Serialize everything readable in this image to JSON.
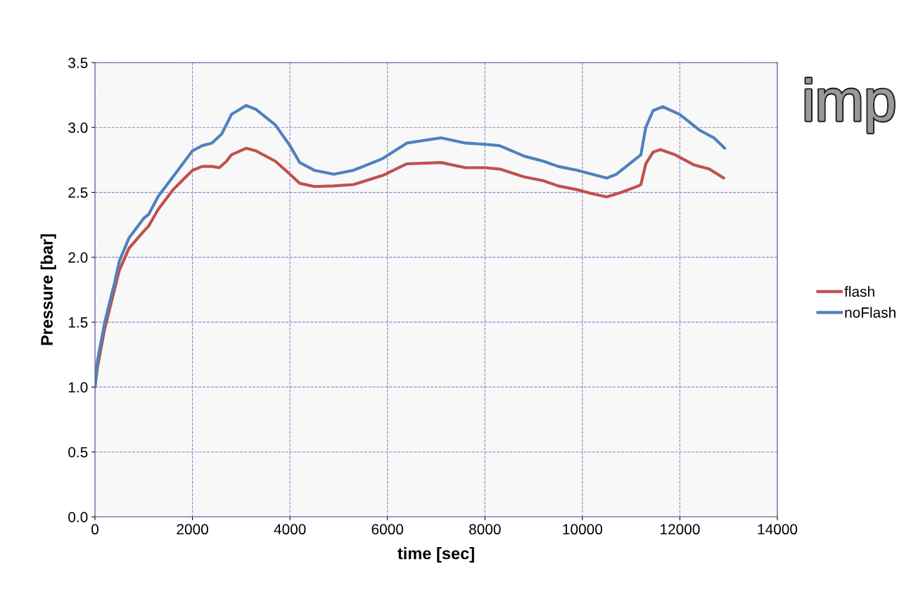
{
  "chart_data": {
    "type": "line",
    "xlabel": "time [sec]",
    "ylabel": "Pressure [bar]",
    "xlim": [
      0,
      14000
    ],
    "xticks": [
      0,
      2000,
      4000,
      6000,
      8000,
      10000,
      12000,
      14000
    ],
    "ylim": [
      0,
      3.5
    ],
    "yticks": [
      {
        "value": 0,
        "label": "0.0"
      },
      {
        "value": 0.5,
        "label": "0.5"
      },
      {
        "value": 1,
        "label": "1.0"
      },
      {
        "value": 1.5,
        "label": "1.5"
      },
      {
        "value": 2,
        "label": "2.0"
      },
      {
        "value": 2.5,
        "label": "2.5"
      },
      {
        "value": 3,
        "label": "3.0"
      },
      {
        "value": 3.5,
        "label": "3.5"
      }
    ],
    "grid": true,
    "legend": "right",
    "marker": "none",
    "line_style": "solid",
    "annotations": [
      "imp"
    ],
    "series": [
      {
        "name": "flash",
        "color": "#c0504d",
        "x": [
          0,
          50,
          200,
          400,
          500,
          700,
          1000,
          1100,
          1300,
          1600,
          2000,
          2200,
          2400,
          2550,
          2700,
          2800,
          3100,
          3300,
          3700,
          4000,
          4200,
          4500,
          4900,
          5300,
          5900,
          6400,
          7100,
          7600,
          8000,
          8300,
          8800,
          9200,
          9500,
          9900,
          10200,
          10500,
          10800,
          11150,
          11200,
          11300,
          11450,
          11600,
          11900,
          12300,
          12600,
          12900
        ],
        "values": [
          1.0,
          1.15,
          1.45,
          1.75,
          1.9,
          2.07,
          2.2,
          2.24,
          2.37,
          2.52,
          2.67,
          2.7,
          2.7,
          2.69,
          2.74,
          2.79,
          2.84,
          2.82,
          2.74,
          2.64,
          2.57,
          2.545,
          2.55,
          2.56,
          2.63,
          2.72,
          2.73,
          2.69,
          2.69,
          2.68,
          2.62,
          2.59,
          2.55,
          2.52,
          2.49,
          2.465,
          2.5,
          2.55,
          2.56,
          2.72,
          2.81,
          2.83,
          2.79,
          2.71,
          2.68,
          2.61
        ]
      },
      {
        "name": "noFlash",
        "color": "#4f81bd",
        "x": [
          0,
          50,
          200,
          400,
          500,
          700,
          1000,
          1100,
          1300,
          1600,
          2000,
          2200,
          2400,
          2600,
          2800,
          3100,
          3300,
          3700,
          4000,
          4200,
          4500,
          4900,
          5300,
          5900,
          6400,
          7100,
          7600,
          8000,
          8300,
          8800,
          9200,
          9500,
          9900,
          10200,
          10500,
          10700,
          11000,
          11200,
          11300,
          11450,
          11650,
          12000,
          12400,
          12700,
          12920
        ],
        "values": [
          1.0,
          1.2,
          1.5,
          1.8,
          1.97,
          2.15,
          2.3,
          2.33,
          2.47,
          2.62,
          2.82,
          2.86,
          2.88,
          2.95,
          3.1,
          3.17,
          3.14,
          3.02,
          2.86,
          2.73,
          2.67,
          2.64,
          2.67,
          2.76,
          2.88,
          2.92,
          2.88,
          2.87,
          2.86,
          2.78,
          2.74,
          2.7,
          2.67,
          2.64,
          2.61,
          2.64,
          2.73,
          2.79,
          3.0,
          3.13,
          3.16,
          3.1,
          2.98,
          2.92,
          2.84
        ]
      }
    ]
  }
}
